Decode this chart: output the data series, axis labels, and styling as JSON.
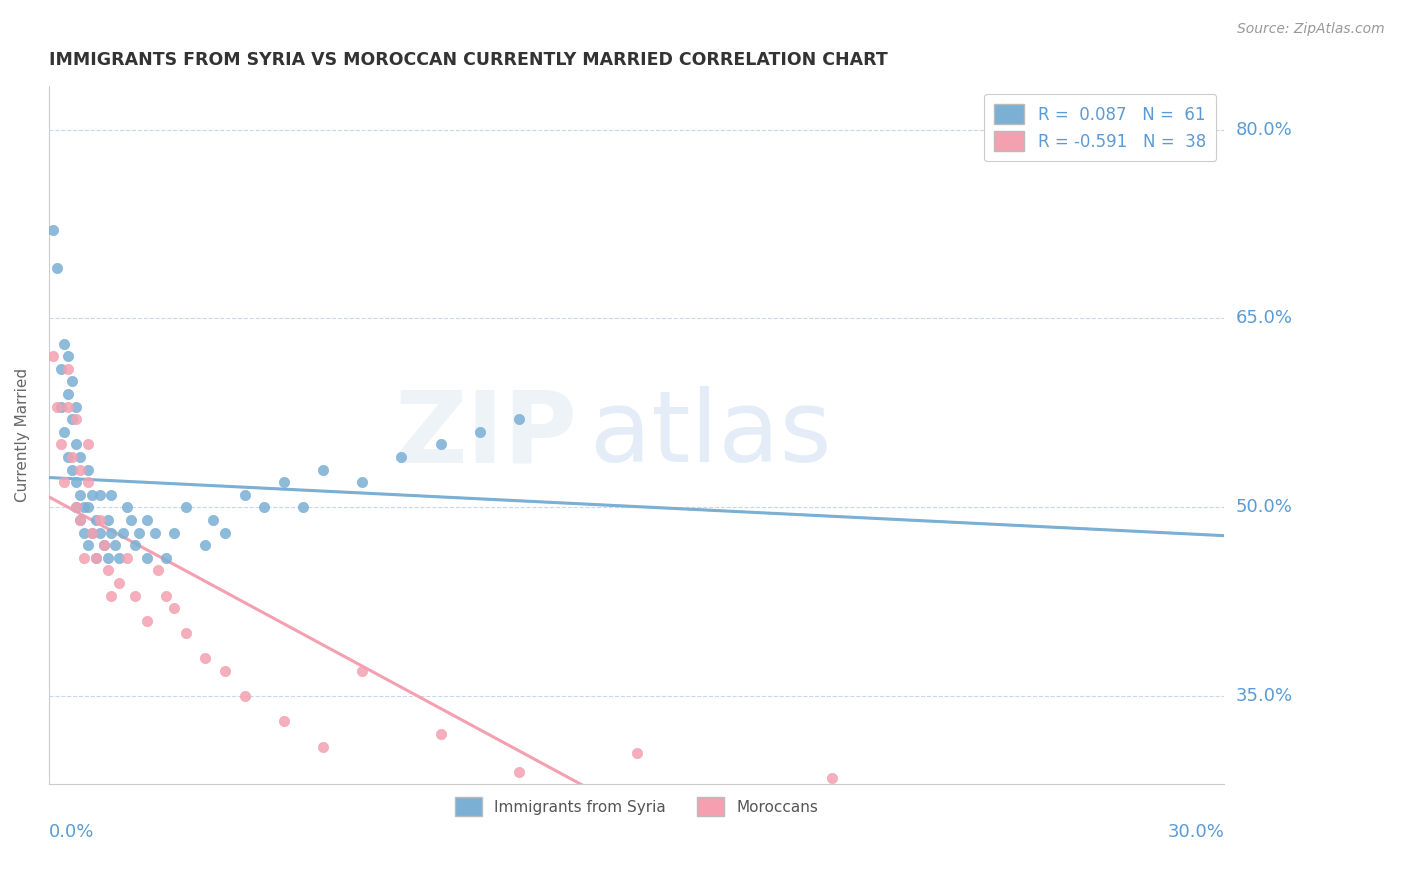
{
  "title": "IMMIGRANTS FROM SYRIA VS MOROCCAN CURRENTLY MARRIED CORRELATION CHART",
  "source": "Source: ZipAtlas.com",
  "ylabel": "Currently Married",
  "color_syria": "#7BAFD4",
  "color_morocco": "#F4A0B0",
  "background_color": "#FFFFFF",
  "legend_syria": "R =  0.087   N =  61",
  "legend_morocco": "R = -0.591   N =  38",
  "xmin": 0.0,
  "xmax": 0.3,
  "ymin": 0.28,
  "ymax": 0.835,
  "ytick_vals": [
    0.8,
    0.65,
    0.5,
    0.35
  ],
  "ytick_labels": [
    "80.0%",
    "65.0%",
    "50.0%",
    "35.0%"
  ],
  "xtick_left_label": "0.0%",
  "xtick_right_label": "30.0%",
  "syria_points_x": [
    0.001,
    0.002,
    0.003,
    0.003,
    0.004,
    0.004,
    0.005,
    0.005,
    0.005,
    0.006,
    0.006,
    0.006,
    0.007,
    0.007,
    0.007,
    0.007,
    0.008,
    0.008,
    0.008,
    0.009,
    0.009,
    0.01,
    0.01,
    0.01,
    0.011,
    0.011,
    0.012,
    0.012,
    0.013,
    0.013,
    0.014,
    0.015,
    0.015,
    0.016,
    0.016,
    0.017,
    0.018,
    0.019,
    0.02,
    0.021,
    0.022,
    0.023,
    0.025,
    0.025,
    0.027,
    0.03,
    0.032,
    0.035,
    0.04,
    0.042,
    0.045,
    0.05,
    0.055,
    0.06,
    0.065,
    0.07,
    0.08,
    0.09,
    0.1,
    0.11,
    0.12
  ],
  "syria_points_y": [
    0.72,
    0.69,
    0.61,
    0.58,
    0.56,
    0.63,
    0.54,
    0.59,
    0.62,
    0.53,
    0.57,
    0.6,
    0.5,
    0.52,
    0.55,
    0.58,
    0.49,
    0.51,
    0.54,
    0.48,
    0.5,
    0.47,
    0.5,
    0.53,
    0.48,
    0.51,
    0.46,
    0.49,
    0.48,
    0.51,
    0.47,
    0.46,
    0.49,
    0.48,
    0.51,
    0.47,
    0.46,
    0.48,
    0.5,
    0.49,
    0.47,
    0.48,
    0.46,
    0.49,
    0.48,
    0.46,
    0.48,
    0.5,
    0.47,
    0.49,
    0.48,
    0.51,
    0.5,
    0.52,
    0.5,
    0.53,
    0.52,
    0.54,
    0.55,
    0.56,
    0.57
  ],
  "morocco_points_x": [
    0.001,
    0.002,
    0.003,
    0.004,
    0.005,
    0.005,
    0.006,
    0.007,
    0.007,
    0.008,
    0.008,
    0.009,
    0.01,
    0.01,
    0.011,
    0.012,
    0.013,
    0.014,
    0.015,
    0.016,
    0.018,
    0.02,
    0.022,
    0.025,
    0.028,
    0.03,
    0.032,
    0.035,
    0.04,
    0.045,
    0.05,
    0.06,
    0.07,
    0.08,
    0.1,
    0.12,
    0.15,
    0.2
  ],
  "morocco_points_y": [
    0.62,
    0.58,
    0.55,
    0.52,
    0.58,
    0.61,
    0.54,
    0.5,
    0.57,
    0.53,
    0.49,
    0.46,
    0.52,
    0.55,
    0.48,
    0.46,
    0.49,
    0.47,
    0.45,
    0.43,
    0.44,
    0.46,
    0.43,
    0.41,
    0.45,
    0.43,
    0.42,
    0.4,
    0.38,
    0.37,
    0.35,
    0.33,
    0.31,
    0.37,
    0.32,
    0.29,
    0.305,
    0.285
  ]
}
